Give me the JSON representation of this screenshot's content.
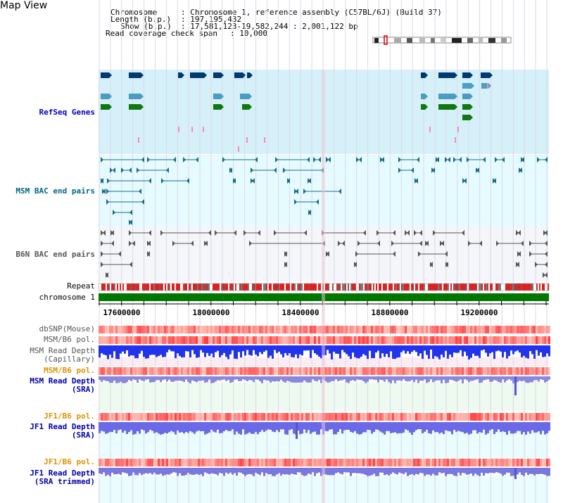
{
  "title": "Map View",
  "header": {
    "chromosome_label": "Chromosome",
    "chromosome_value": ": Chromosome 1, reference assembly (C57BL/6J) (Build 37)",
    "length_label": "Length (b.p.)",
    "length_value": ": 197,195,432",
    "show_label": "Show (b.p.)",
    "show_value": ": 17,581,123-19,582,244 : 2,001,122 bp",
    "coverage_label": "Read coverage check span",
    "coverage_value": ": 10,000"
  },
  "tracks": {
    "refseq": "RefSeq Genes",
    "msm_bac": "MSM BAC end pairs",
    "b6n_bac": "B6N BAC end pairs",
    "repeat": "Repeat",
    "chromosome": "chromosome 1",
    "dbsnp": "dbSNP(Mouse)",
    "msm_b6_pol": "MSM/B6 pol.",
    "msm_read_depth_cap_1": "MSM Read Depth",
    "msm_read_depth_cap_2": "(Capillary)",
    "msm_b6_pol_2": "MSM/B6 pol.",
    "msm_read_depth_sra_1": "MSM Read Depth",
    "msm_read_depth_sra_2": "(SRA)",
    "jf1_b6_pol": "JF1/B6 pol.",
    "jf1_read_depth_1": "JF1 Read Depth",
    "jf1_read_depth_2": "(SRA)",
    "jf1_b6_pol_2": "JF1/B6 pol.",
    "jf1_trim_1": "JF1 Read Depth",
    "jf1_trim_2": "(SRA trimmed)"
  },
  "axis_ticks": [
    "17600000",
    "18000000",
    "18400000",
    "18800000",
    "19200000"
  ],
  "colors": {
    "refseq_bg": "#d6f0fa",
    "bac_bg": "#e6fbff",
    "b6n_bg": "#f4f6fa",
    "chrom_bar": "#007700",
    "label_blue": "#0000cc",
    "label_orange": "#e09000",
    "label_teal": "#006688",
    "label_gray": "#444444"
  }
}
